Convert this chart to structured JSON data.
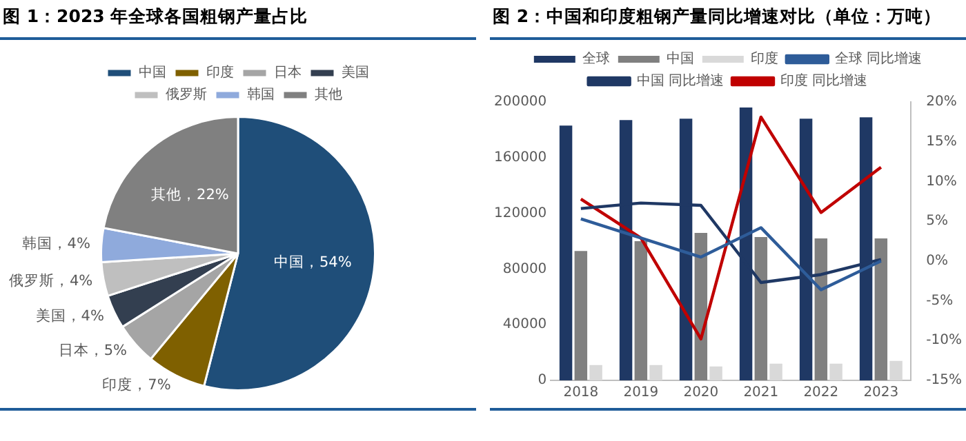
{
  "chart_data": [
    {
      "type": "pie",
      "title": "图 1：2023 年全球各国粗钢产量占比",
      "categories": [
        "中国",
        "印度",
        "日本",
        "美国",
        "俄罗斯",
        "韩国",
        "其他"
      ],
      "values": [
        54,
        7,
        5,
        4,
        4,
        4,
        22
      ],
      "colors": [
        "#1f4e79",
        "#7f6000",
        "#a5a5a5",
        "#333f50",
        "#bfbfbf",
        "#8faadc",
        "#808080"
      ],
      "value_labels": [
        "中国，54%",
        "印度，7%",
        "日本，5%",
        "美国，4%",
        "俄罗斯，4%",
        "韩国，4%",
        "其他，22%"
      ],
      "legend": "top"
    },
    {
      "type": "bar",
      "title": "图 2：中国和印度粗钢产量同比增速对比（单位：万吨）",
      "categories": [
        "2018",
        "2019",
        "2020",
        "2021",
        "2022",
        "2023"
      ],
      "series": [
        {
          "name": "全球",
          "color": "#1f3864",
          "values": [
            183000,
            187000,
            188000,
            196000,
            188000,
            189000
          ]
        },
        {
          "name": "中国",
          "color": "#808080",
          "values": [
            93000,
            100000,
            106000,
            103000,
            102000,
            102000
          ]
        },
        {
          "name": "印度",
          "color": "#d9d9d9",
          "values": [
            11000,
            11000,
            10000,
            12000,
            12000,
            14000
          ]
        },
        {
          "name": "全球 同比增速",
          "type": "line",
          "axis": "y2",
          "color": "#2e5c99",
          "values": [
            5.3,
            2.9,
            0.5,
            4.2,
            -3.6,
            0
          ]
        },
        {
          "name": "中国 同比增速",
          "type": "line",
          "axis": "y2",
          "color": "#1f3864",
          "values": [
            6.6,
            7.3,
            7.0,
            -2.7,
            -1.7,
            0.2
          ]
        },
        {
          "name": "印度 同比增速",
          "type": "line",
          "axis": "y2",
          "color": "#c00000",
          "values": [
            7.8,
            2.9,
            -9.8,
            18.1,
            6.1,
            11.8
          ]
        }
      ],
      "ylim": [
        0,
        200000
      ],
      "yticks": [
        0,
        40000,
        80000,
        120000,
        160000,
        200000
      ],
      "y2lim": [
        -15,
        20
      ],
      "y2ticks": [
        {
          "value": -15,
          "label": "-15%"
        },
        {
          "value": -10,
          "label": "-10%"
        },
        {
          "value": -5,
          "label": "-5%"
        },
        {
          "value": 0,
          "label": "0%"
        },
        {
          "value": 5,
          "label": "5%"
        },
        {
          "value": 10,
          "label": "10%"
        },
        {
          "value": 15,
          "label": "15%"
        },
        {
          "value": 20,
          "label": "20%"
        }
      ],
      "grid": false,
      "legend": "top"
    }
  ]
}
